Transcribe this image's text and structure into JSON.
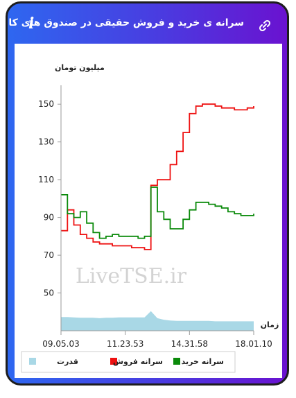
{
  "header": {
    "title": "سرانه ی خرید و فروش حقیقی در صندوق های کالایی",
    "info_icon": "info-icon",
    "link_icon": "link-icon"
  },
  "colors": {
    "buy": "#0a8a0a",
    "sell": "#ee1111",
    "power": "#a9d8e6",
    "frame_gradient": [
      "#2e67f0",
      "#6a12d0"
    ]
  },
  "watermark": "LiveTSE.ir",
  "chart_data": {
    "type": "line",
    "ylabel": "میلیون تومان",
    "xlabel": "زمان",
    "ylim": [
      30,
      160
    ],
    "yticks": [
      50,
      70,
      90,
      110,
      130,
      150
    ],
    "xtick_labels": [
      "09.05.03",
      "11.23.53",
      "14.31.58",
      "18.01.10"
    ],
    "grid": false,
    "legend_position": "bottom",
    "legend": [
      "سرانه خرید",
      "سرانه فروش",
      "قدرت"
    ],
    "x": [
      0,
      1,
      2,
      3,
      4,
      5,
      6,
      7,
      8,
      9,
      10,
      11,
      12,
      13,
      14,
      15,
      16,
      17,
      18,
      19,
      20,
      21,
      22,
      23,
      24,
      25,
      26,
      27,
      28,
      29,
      30
    ],
    "series": [
      {
        "name": "سرانه خرید",
        "values": [
          102,
          92,
          90,
          93,
          87,
          82,
          79,
          80,
          81,
          80,
          80,
          80,
          79,
          80,
          106,
          93,
          89,
          84,
          84,
          89,
          94,
          98,
          98,
          97,
          96,
          95,
          93,
          92,
          91,
          91,
          92
        ]
      },
      {
        "name": "سرانه فروش",
        "values": [
          83,
          94,
          86,
          81,
          79,
          77,
          76,
          76,
          75,
          75,
          75,
          74,
          74,
          73,
          107,
          110,
          110,
          118,
          125,
          135,
          145,
          149,
          150,
          150,
          149,
          148,
          148,
          147,
          147,
          148,
          149
        ]
      },
      {
        "name": "قدرت",
        "values": [
          0.35,
          0.35,
          0.34,
          0.33,
          0.33,
          0.33,
          0.32,
          0.33,
          0.33,
          0.34,
          0.34,
          0.34,
          0.34,
          0.34,
          0.5,
          0.32,
          0.28,
          0.26,
          0.25,
          0.25,
          0.25,
          0.25,
          0.25,
          0.25,
          0.24,
          0.24,
          0.24,
          0.24,
          0.24,
          0.24,
          0.24
        ]
      }
    ]
  }
}
